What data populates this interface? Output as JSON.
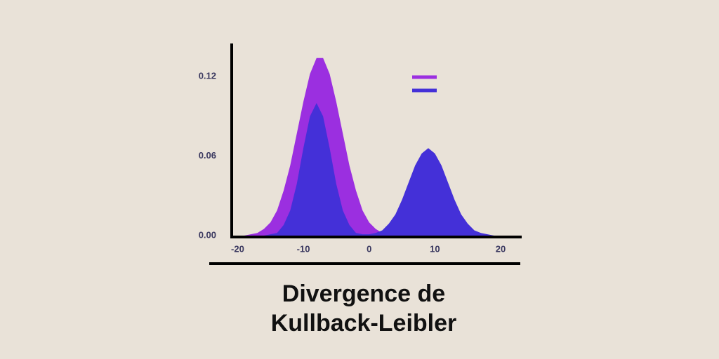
{
  "chart_data": {
    "type": "area",
    "title": "Divergence de Kullback-Leibler",
    "x": [
      -19,
      -18,
      -17,
      -16,
      -15,
      -14,
      -13,
      -12,
      -11,
      -10,
      -9,
      -8,
      -7,
      -6,
      -5,
      -4,
      -3,
      -2,
      -1,
      0,
      1,
      2,
      3,
      4,
      5,
      6,
      7,
      8,
      9,
      10,
      11,
      12,
      13,
      14,
      15,
      16,
      17,
      18,
      19,
      20
    ],
    "series": [
      {
        "color": "#9b2fe0",
        "values": [
          0,
          0.001,
          0.002,
          0.005,
          0.01,
          0.019,
          0.034,
          0.053,
          0.077,
          0.101,
          0.122,
          0.134,
          0.134,
          0.122,
          0.101,
          0.077,
          0.053,
          0.034,
          0.019,
          0.01,
          0.005,
          0.002,
          0.001,
          0,
          0,
          0,
          0,
          0,
          0,
          0,
          0,
          0,
          0,
          0,
          0,
          0,
          0,
          0,
          0,
          0
        ]
      },
      {
        "color": "#4430d8",
        "values": [
          0,
          0,
          0,
          0,
          0.001,
          0.002,
          0.008,
          0.019,
          0.039,
          0.066,
          0.09,
          0.1,
          0.09,
          0.066,
          0.039,
          0.019,
          0.008,
          0.002,
          0.001,
          0.001,
          0.002,
          0.004,
          0.009,
          0.016,
          0.027,
          0.04,
          0.053,
          0.062,
          0.066,
          0.062,
          0.053,
          0.04,
          0.027,
          0.016,
          0.009,
          0.004,
          0.002,
          0.001,
          0,
          0
        ]
      }
    ],
    "xlim": [
      -20.9,
      23.1
    ],
    "xticks": [
      -20,
      -10,
      0,
      10,
      20
    ],
    "ylim": [
      0,
      0.145
    ],
    "yticks": [
      {
        "value": 0,
        "label": "0.00"
      },
      0.06,
      0.12
    ]
  }
}
